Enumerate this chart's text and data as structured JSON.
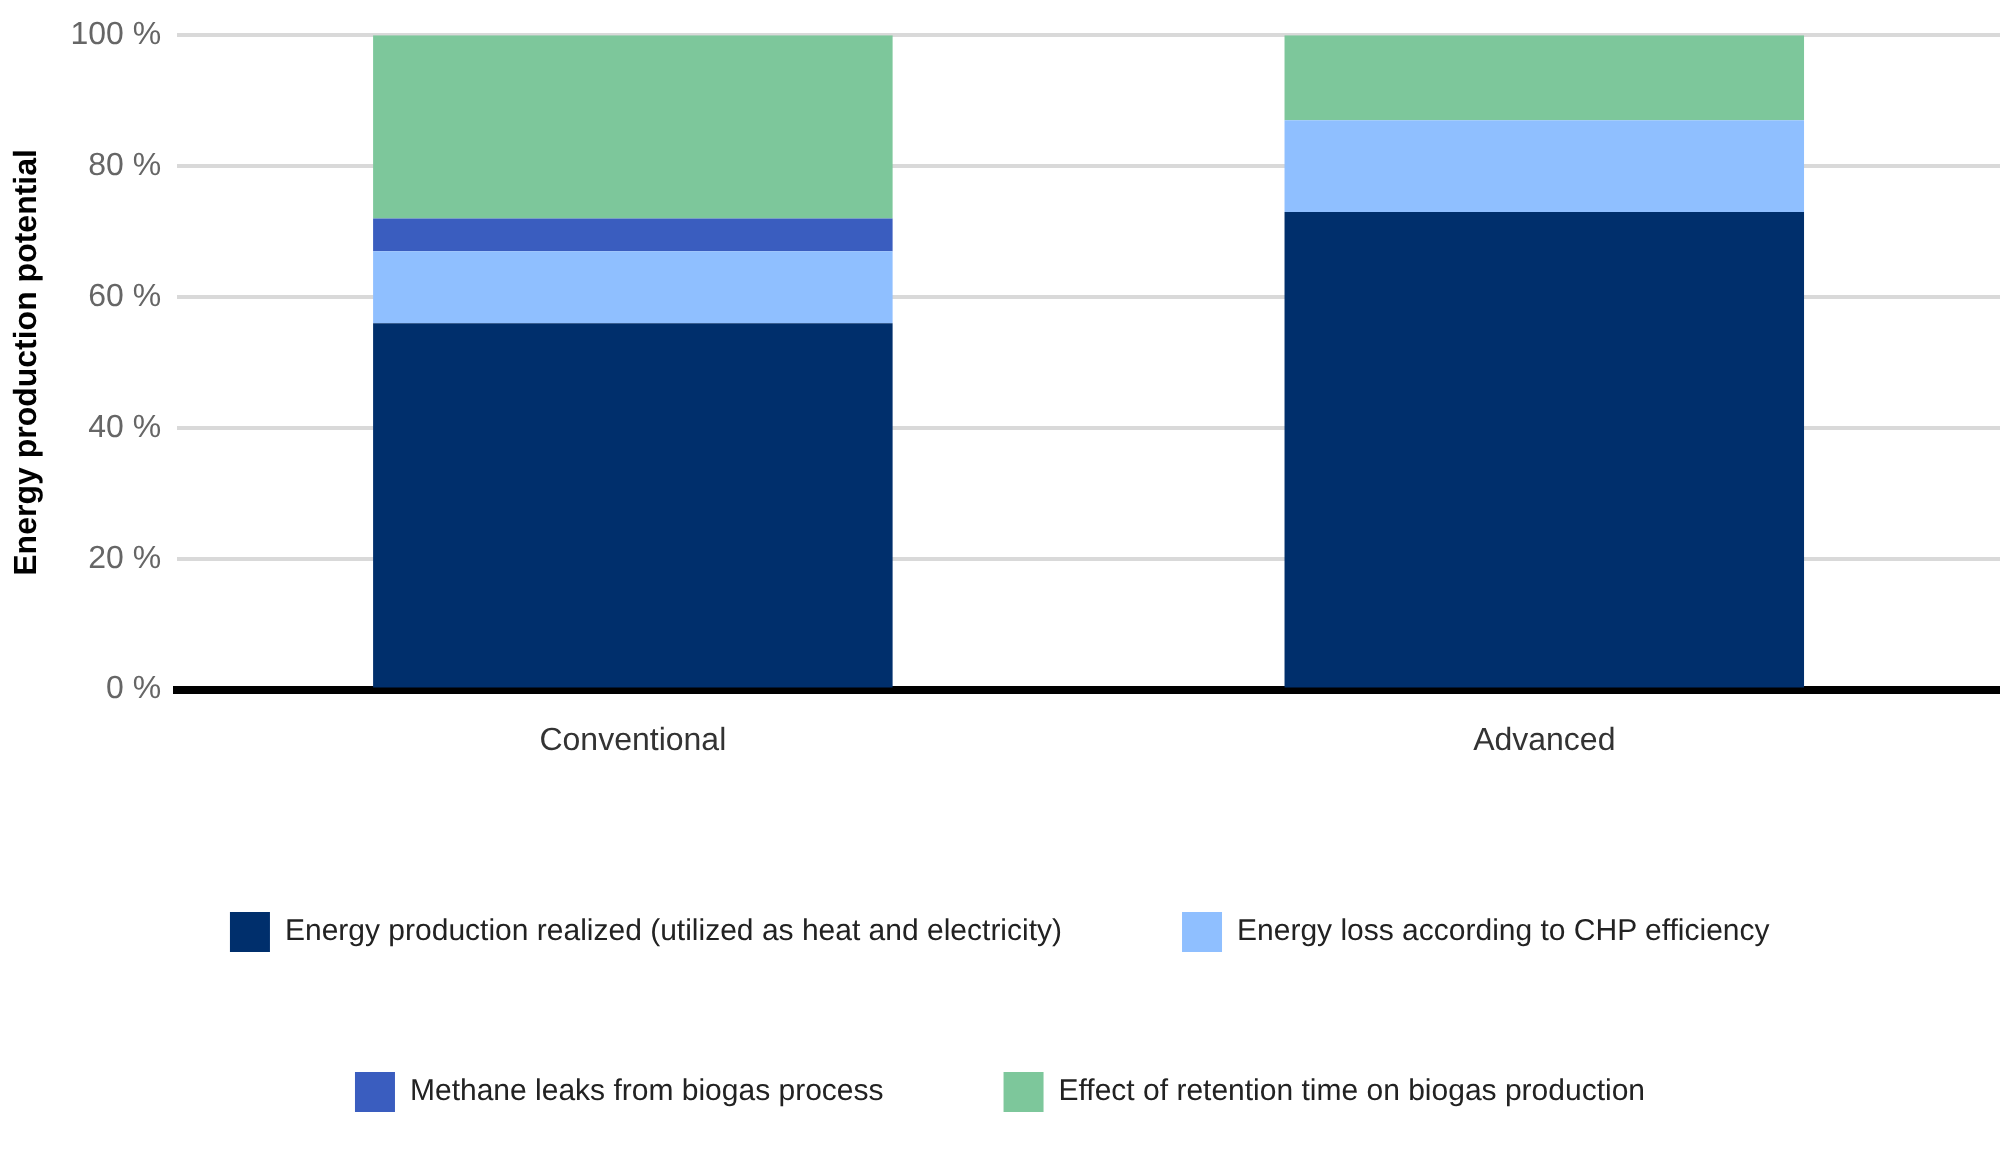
{
  "chart_data": {
    "type": "bar",
    "stacked": true,
    "ylabel": "Energy production potential",
    "categories": [
      "Conventional",
      "Advanced"
    ],
    "series": [
      {
        "name": "Energy production realized (utilized as heat and electricity)",
        "color": "#002f6c",
        "values": [
          56,
          73
        ]
      },
      {
        "name": "Energy loss according to CHP efficiency",
        "color": "#8fbfff",
        "values": [
          11,
          14
        ]
      },
      {
        "name": "Methane leaks from biogas process",
        "color": "#3a5dbf",
        "values": [
          5,
          0
        ]
      },
      {
        "name": "Effect of retention time on biogas production",
        "color": "#7dc79b",
        "values": [
          28,
          13
        ]
      }
    ],
    "ylim": [
      0,
      100
    ],
    "yticks": [
      {
        "value": 0,
        "label": "0 %"
      },
      {
        "value": 20,
        "label": "20 %"
      },
      {
        "value": 40,
        "label": "40 %"
      },
      {
        "value": 60,
        "label": "60 %"
      },
      {
        "value": 80,
        "label": "80 %"
      },
      {
        "value": 100,
        "label": "100 %"
      }
    ],
    "grid": "y",
    "legend": "bottom"
  }
}
